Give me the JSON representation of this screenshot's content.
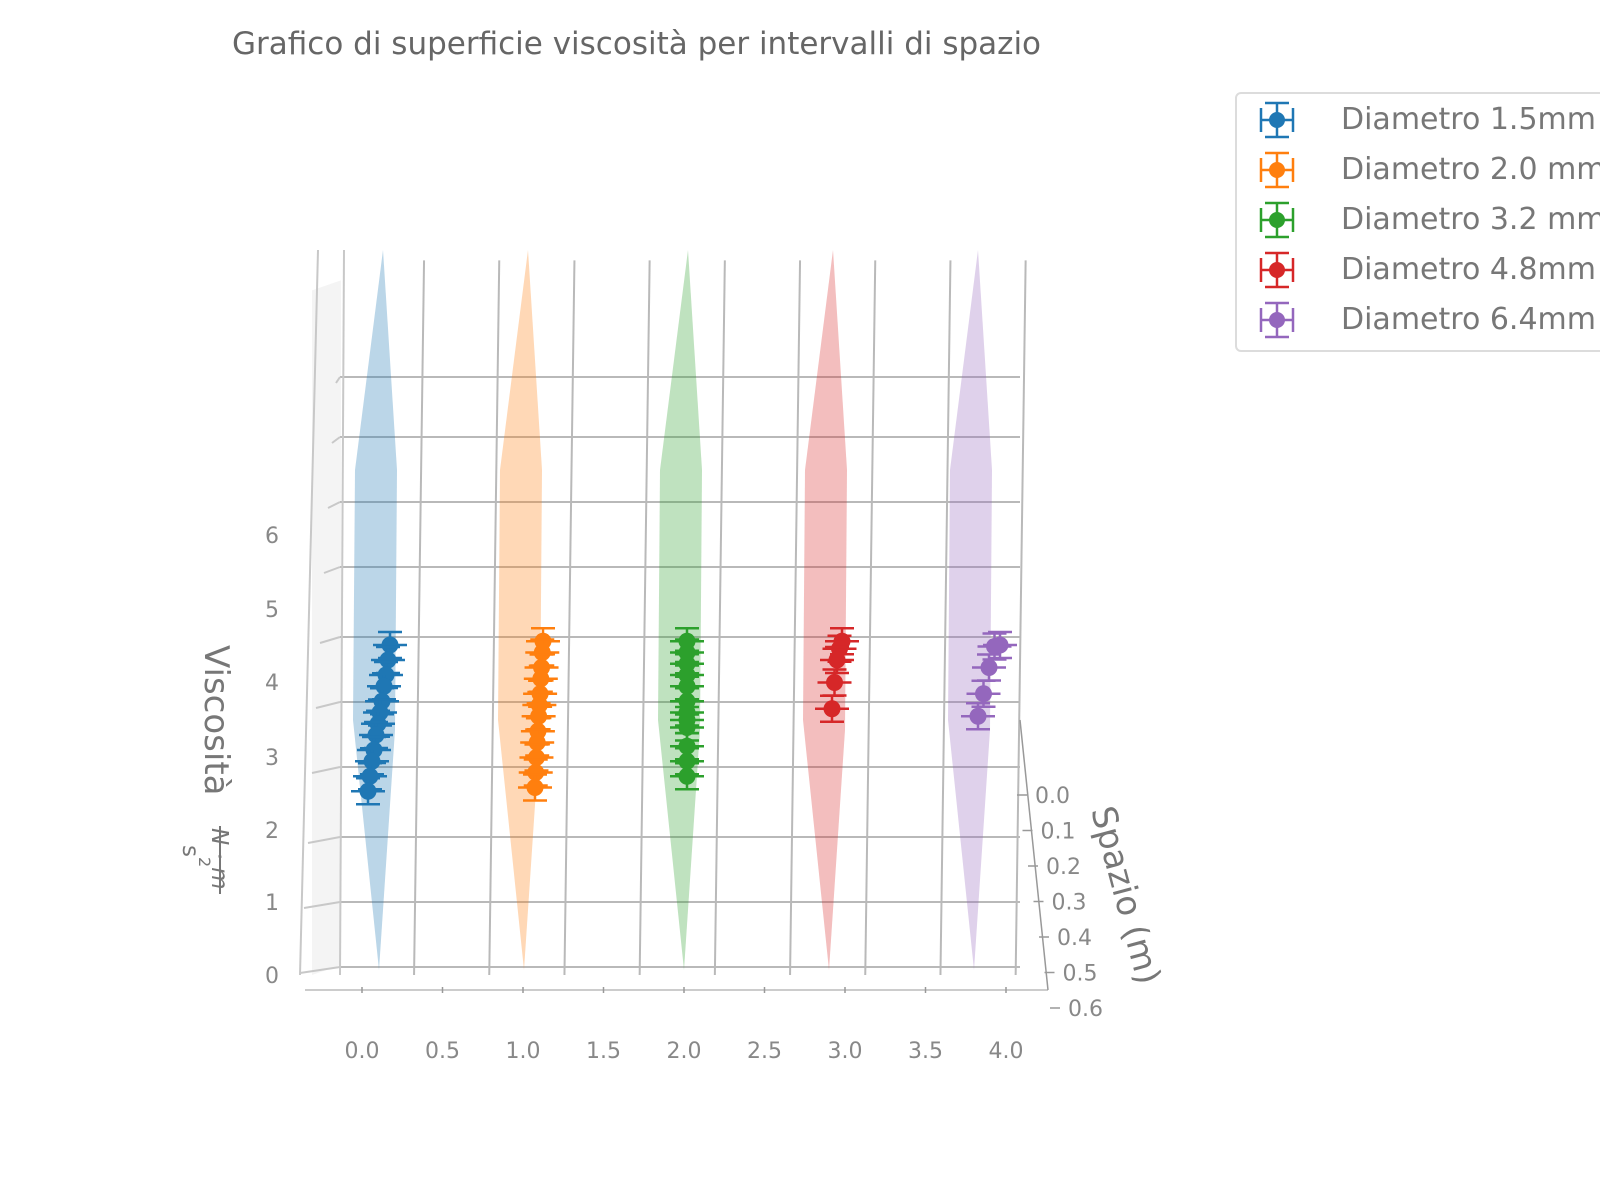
{
  "title": "Grafico di superficie viscosità per intervalli di spazio",
  "chart_data": {
    "type": "scatter",
    "projection": "3d",
    "xlabel": "",
    "ylabel": "Spazio (m)",
    "zlabel": "Viscosità N·m / s²",
    "zlabel_main": "Viscosità",
    "zlabel_num": "N · m",
    "zlabel_den": "s",
    "zlabel_exp": "2",
    "xticks": [
      "0.0",
      "0.5",
      "1.0",
      "1.5",
      "2.0",
      "2.5",
      "3.0",
      "3.5",
      "4.0"
    ],
    "yticks": [
      "0.0",
      "0.1",
      "0.2",
      "0.3",
      "0.4",
      "0.5",
      "0.6"
    ],
    "zticks": [
      "0",
      "1",
      "2",
      "3",
      "4",
      "5",
      "6"
    ],
    "xlim": [
      0,
      4
    ],
    "ylim": [
      0,
      0.6
    ],
    "zlim": [
      0,
      6
    ],
    "grid": true,
    "legend_position": "top-right",
    "series": [
      {
        "name": "Diametro 1.5mm",
        "color": "#1f77b4",
        "x": 0,
        "values": [
          4.4,
          4.2,
          4.0,
          3.85,
          3.65,
          3.5,
          3.35,
          3.2,
          3.0,
          2.85,
          2.65,
          2.45
        ]
      },
      {
        "name": "Diametro 2.0 mm",
        "color": "#ff7f0e",
        "x": 1,
        "values": [
          4.45,
          4.3,
          4.1,
          3.95,
          3.75,
          3.6,
          3.45,
          3.25,
          3.1,
          2.9,
          2.7,
          2.5
        ]
      },
      {
        "name": "Diametro 3.2 mm",
        "color": "#2ca02c",
        "x": 2,
        "values": [
          4.45,
          4.3,
          4.15,
          4.0,
          3.85,
          3.65,
          3.5,
          3.4,
          3.3,
          3.05,
          2.85,
          2.65
        ]
      },
      {
        "name": "Diametro 4.8mm",
        "color": "#d62728",
        "x": 3,
        "values": [
          4.45,
          4.35,
          4.2,
          3.9,
          3.55
        ]
      },
      {
        "name": "Diametro 6.4mm",
        "color": "#9467bd",
        "x": 4,
        "values": [
          4.4,
          4.38,
          4.1,
          3.75,
          3.45
        ]
      }
    ]
  }
}
